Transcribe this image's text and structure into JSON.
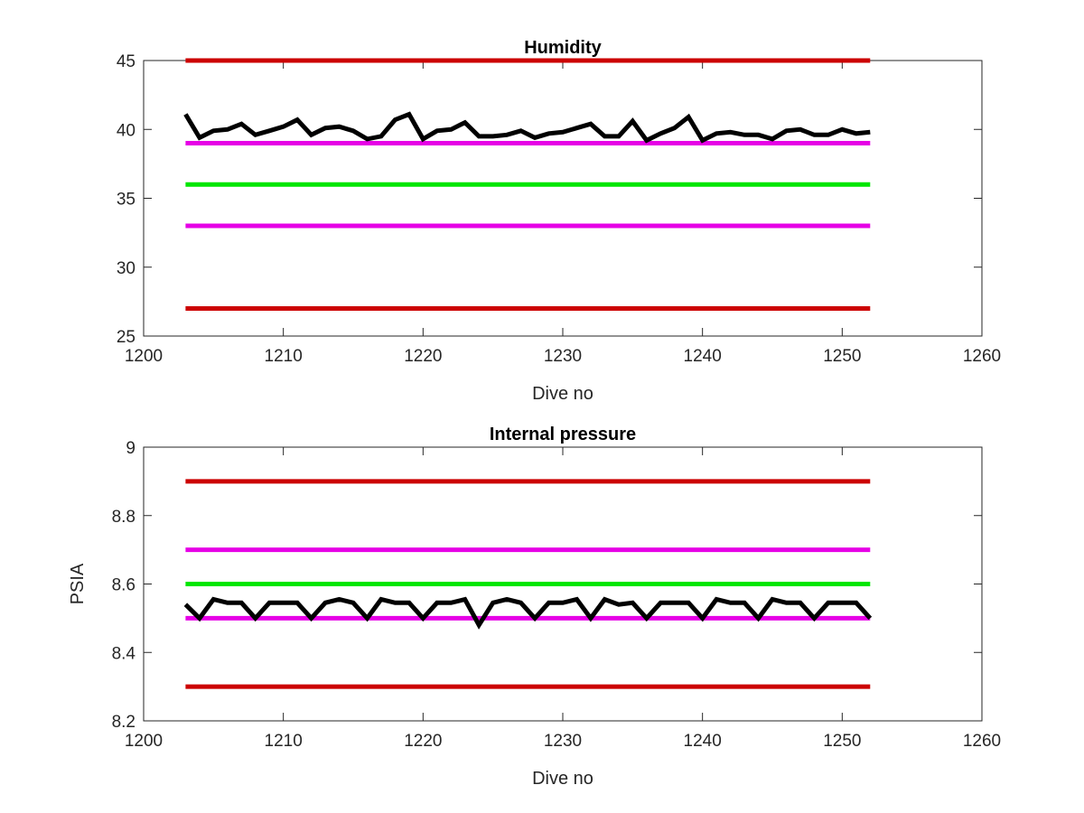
{
  "chart_data": [
    {
      "type": "line",
      "title": "Humidity",
      "xlabel": "Dive no",
      "ylabel": "",
      "xlim": [
        1200,
        1260
      ],
      "ylim": [
        25,
        45
      ],
      "xticks": [
        1200,
        1210,
        1220,
        1230,
        1240,
        1250,
        1260
      ],
      "yticks": [
        25,
        30,
        35,
        40,
        45
      ],
      "grid": false,
      "legend": "none",
      "series": [
        {
          "color": "#cc0000",
          "style": "threshold",
          "x": [
            1203,
            1252
          ],
          "y": [
            45,
            45
          ]
        },
        {
          "color": "#cc0000",
          "style": "threshold",
          "x": [
            1203,
            1252
          ],
          "y": [
            27,
            27
          ]
        },
        {
          "color": "#e600e6",
          "style": "threshold",
          "x": [
            1203,
            1252
          ],
          "y": [
            39,
            39
          ]
        },
        {
          "color": "#e600e6",
          "style": "threshold",
          "x": [
            1203,
            1252
          ],
          "y": [
            33,
            33
          ]
        },
        {
          "color": "#00e600",
          "style": "threshold",
          "x": [
            1203,
            1252
          ],
          "y": [
            36,
            36
          ]
        },
        {
          "color": "#000000",
          "style": "data",
          "x": [
            1203,
            1204,
            1205,
            1206,
            1207,
            1208,
            1209,
            1210,
            1211,
            1212,
            1213,
            1214,
            1215,
            1216,
            1217,
            1218,
            1219,
            1220,
            1221,
            1222,
            1223,
            1224,
            1225,
            1226,
            1227,
            1228,
            1229,
            1230,
            1231,
            1232,
            1233,
            1234,
            1235,
            1236,
            1237,
            1238,
            1239,
            1240,
            1241,
            1242,
            1243,
            1244,
            1245,
            1246,
            1247,
            1248,
            1249,
            1250,
            1251,
            1252
          ],
          "y": [
            41.1,
            39.4,
            39.9,
            40.0,
            40.4,
            39.6,
            39.9,
            40.2,
            40.7,
            39.6,
            40.1,
            40.2,
            39.9,
            39.3,
            39.5,
            40.7,
            41.1,
            39.3,
            39.9,
            40.0,
            40.5,
            39.5,
            39.5,
            39.6,
            39.9,
            39.4,
            39.7,
            39.8,
            40.1,
            40.4,
            39.5,
            39.5,
            40.6,
            39.2,
            39.7,
            40.1,
            40.9,
            39.2,
            39.7,
            39.8,
            39.6,
            39.6,
            39.3,
            39.9,
            40.0,
            39.6,
            39.6,
            40.0,
            39.7,
            39.8
          ]
        }
      ]
    },
    {
      "type": "line",
      "title": "Internal pressure",
      "xlabel": "Dive no",
      "ylabel": "PSIA",
      "xlim": [
        1200,
        1260
      ],
      "ylim": [
        8.2,
        9.0
      ],
      "xticks": [
        1200,
        1210,
        1220,
        1230,
        1240,
        1250,
        1260
      ],
      "yticks": [
        8.2,
        8.4,
        8.6,
        8.8,
        9
      ],
      "grid": false,
      "legend": "none",
      "series": [
        {
          "color": "#cc0000",
          "style": "threshold",
          "x": [
            1203,
            1252
          ],
          "y": [
            8.9,
            8.9
          ]
        },
        {
          "color": "#cc0000",
          "style": "threshold",
          "x": [
            1203,
            1252
          ],
          "y": [
            8.3,
            8.3
          ]
        },
        {
          "color": "#e600e6",
          "style": "threshold",
          "x": [
            1203,
            1252
          ],
          "y": [
            8.7,
            8.7
          ]
        },
        {
          "color": "#e600e6",
          "style": "threshold",
          "x": [
            1203,
            1252
          ],
          "y": [
            8.5,
            8.5
          ]
        },
        {
          "color": "#00e600",
          "style": "threshold",
          "x": [
            1203,
            1252
          ],
          "y": [
            8.6,
            8.6
          ]
        },
        {
          "color": "#000000",
          "style": "data",
          "x": [
            1203,
            1204,
            1205,
            1206,
            1207,
            1208,
            1209,
            1210,
            1211,
            1212,
            1213,
            1214,
            1215,
            1216,
            1217,
            1218,
            1219,
            1220,
            1221,
            1222,
            1223,
            1224,
            1225,
            1226,
            1227,
            1228,
            1229,
            1230,
            1231,
            1232,
            1233,
            1234,
            1235,
            1236,
            1237,
            1238,
            1239,
            1240,
            1241,
            1242,
            1243,
            1244,
            1245,
            1246,
            1247,
            1248,
            1249,
            1250,
            1251,
            1252
          ],
          "y": [
            8.54,
            8.5,
            8.555,
            8.545,
            8.545,
            8.5,
            8.545,
            8.545,
            8.545,
            8.5,
            8.545,
            8.555,
            8.545,
            8.5,
            8.555,
            8.545,
            8.545,
            8.5,
            8.545,
            8.545,
            8.555,
            8.48,
            8.545,
            8.555,
            8.545,
            8.5,
            8.545,
            8.545,
            8.555,
            8.5,
            8.555,
            8.54,
            8.545,
            8.5,
            8.545,
            8.545,
            8.545,
            8.5,
            8.555,
            8.545,
            8.545,
            8.5,
            8.555,
            8.545,
            8.545,
            8.5,
            8.545,
            8.545,
            8.545,
            8.5
          ]
        }
      ]
    }
  ]
}
